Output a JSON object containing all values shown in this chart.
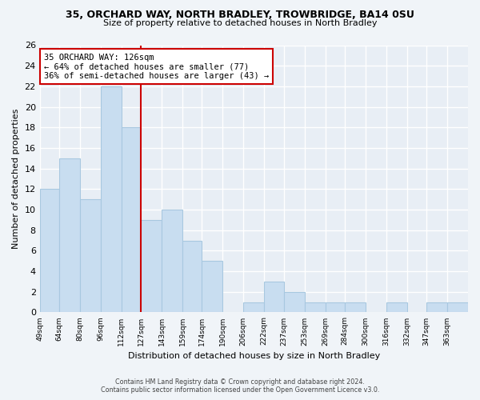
{
  "title1": "35, ORCHARD WAY, NORTH BRADLEY, TROWBRIDGE, BA14 0SU",
  "title2": "Size of property relative to detached houses in North Bradley",
  "xlabel": "Distribution of detached houses by size in North Bradley",
  "ylabel": "Number of detached properties",
  "bin_edges": [
    49,
    64,
    80,
    96,
    112,
    127,
    143,
    159,
    174,
    190,
    206,
    222,
    237,
    253,
    269,
    284,
    300,
    316,
    332,
    347,
    363,
    379
  ],
  "bin_labels": [
    "49sqm",
    "64sqm",
    "80sqm",
    "96sqm",
    "112sqm",
    "127sqm",
    "143sqm",
    "159sqm",
    "174sqm",
    "190sqm",
    "206sqm",
    "222sqm",
    "237sqm",
    "253sqm",
    "269sqm",
    "284sqm",
    "300sqm",
    "316sqm",
    "332sqm",
    "347sqm",
    "363sqm"
  ],
  "counts": [
    12,
    15,
    11,
    22,
    18,
    9,
    10,
    7,
    5,
    0,
    1,
    3,
    2,
    1,
    1,
    1,
    0,
    1,
    0,
    1,
    1
  ],
  "bar_color": "#c8ddf0",
  "bar_edge_color": "#a8c8e0",
  "property_line_x": 127,
  "property_line_color": "#cc0000",
  "annotation_line1": "35 ORCHARD WAY: 126sqm",
  "annotation_line2": "← 64% of detached houses are smaller (77)",
  "annotation_line3": "36% of semi-detached houses are larger (43) →",
  "annotation_box_color": "#ffffff",
  "annotation_box_edge": "#cc0000",
  "ylim": [
    0,
    26
  ],
  "yticks": [
    0,
    2,
    4,
    6,
    8,
    10,
    12,
    14,
    16,
    18,
    20,
    22,
    24,
    26
  ],
  "footer1": "Contains HM Land Registry data © Crown copyright and database right 2024.",
  "footer2": "Contains public sector information licensed under the Open Government Licence v3.0.",
  "bg_color": "#f0f4f8",
  "plot_bg_color": "#e8eef5",
  "grid_color": "#ffffff"
}
